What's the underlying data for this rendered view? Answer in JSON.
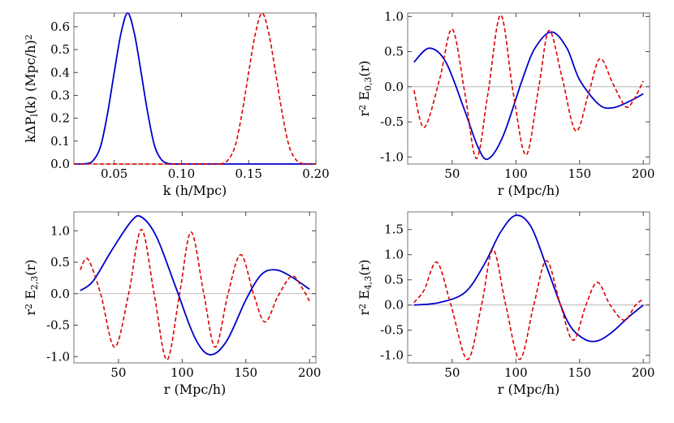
{
  "chart_data": [
    {
      "id": "top-left",
      "type": "line",
      "xlabel": "k (h/Mpc)",
      "ylabel": "kΔP_l(k) (Mpc/h)^2",
      "xlim": [
        0.02,
        0.2
      ],
      "ylim": [
        0.0,
        0.66
      ],
      "xticks": [
        0.05,
        0.1,
        0.15,
        0.2
      ],
      "xtick_labels": [
        "0.05",
        "0.10",
        "0.15",
        "0.20"
      ],
      "yticks": [
        0.0,
        0.1,
        0.2,
        0.3,
        0.4,
        0.5,
        0.6
      ],
      "ytick_labels": [
        "0.0",
        "0.1",
        "0.2",
        "0.3",
        "0.4",
        "0.5",
        "0.6"
      ],
      "zero_line": false,
      "series": [
        {
          "name": "solid",
          "color": "#0000cc",
          "style": "solid",
          "x": [
            0.02,
            0.03,
            0.035,
            0.04,
            0.045,
            0.05,
            0.055,
            0.06,
            0.065,
            0.07,
            0.075,
            0.08,
            0.085,
            0.09,
            0.095,
            0.1,
            0.11,
            0.2
          ],
          "y": [
            0.0,
            0.002,
            0.02,
            0.08,
            0.22,
            0.4,
            0.57,
            0.66,
            0.57,
            0.4,
            0.22,
            0.08,
            0.02,
            0.002,
            0.0,
            0.0,
            0.0,
            0.0
          ]
        },
        {
          "name": "dashed",
          "color": "#dd0000",
          "style": "dashed",
          "x": [
            0.02,
            0.12,
            0.13,
            0.135,
            0.14,
            0.145,
            0.15,
            0.155,
            0.16,
            0.165,
            0.17,
            0.175,
            0.18,
            0.185,
            0.19,
            0.195,
            0.2
          ],
          "y": [
            0.0,
            0.0,
            0.002,
            0.02,
            0.08,
            0.22,
            0.4,
            0.57,
            0.66,
            0.57,
            0.4,
            0.22,
            0.08,
            0.02,
            0.002,
            0.0,
            0.0
          ]
        }
      ]
    },
    {
      "id": "top-right",
      "type": "line",
      "xlabel": "r (Mpc/h)",
      "ylabel": "r^2 E_{0,3}(r)",
      "xlim": [
        15,
        205
      ],
      "ylim": [
        -1.1,
        1.05
      ],
      "xticks": [
        50,
        100,
        150,
        200
      ],
      "xtick_labels": [
        "50",
        "100",
        "150",
        "200"
      ],
      "yticks": [
        -1.0,
        -0.5,
        0.0,
        0.5,
        1.0
      ],
      "ytick_labels": [
        "-1.0",
        "-0.5",
        "0.0",
        "0.5",
        "1.0"
      ],
      "zero_line": true,
      "series": [
        {
          "name": "solid",
          "color": "#0000cc",
          "style": "solid",
          "x": [
            20,
            32,
            45,
            60,
            70,
            78,
            90,
            105,
            115,
            128,
            140,
            150,
            165,
            176,
            190,
            200
          ],
          "y": [
            0.35,
            0.55,
            0.35,
            -0.35,
            -0.85,
            -1.03,
            -0.7,
            0.1,
            0.55,
            0.78,
            0.55,
            0.1,
            -0.25,
            -0.3,
            -0.2,
            -0.1
          ]
        },
        {
          "name": "dashed",
          "color": "#dd0000",
          "style": "dashed",
          "x": [
            20,
            28,
            40,
            50,
            60,
            69,
            78,
            88,
            98,
            108,
            118,
            126,
            136,
            147,
            157,
            166,
            176,
            186,
            192,
            200
          ],
          "y": [
            -0.05,
            -0.58,
            0.1,
            0.82,
            -0.1,
            -1.02,
            -0.1,
            1.02,
            -0.1,
            -0.97,
            0.0,
            0.8,
            0.15,
            -0.63,
            -0.1,
            0.4,
            0.05,
            -0.28,
            -0.2,
            0.08
          ]
        }
      ]
    },
    {
      "id": "bottom-left",
      "type": "line",
      "xlabel": "r (Mpc/h)",
      "ylabel": "r^2 E_{2,3}(r)",
      "xlim": [
        15,
        205
      ],
      "ylim": [
        -1.1,
        1.3
      ],
      "xticks": [
        50,
        100,
        150,
        200
      ],
      "xtick_labels": [
        "50",
        "100",
        "150",
        "200"
      ],
      "yticks": [
        -1.0,
        -0.5,
        0.0,
        0.5,
        1.0
      ],
      "ytick_labels": [
        "-1.0",
        "-0.5",
        "0.0",
        "0.5",
        "1.0"
      ],
      "zero_line": true,
      "series": [
        {
          "name": "solid",
          "color": "#0000cc",
          "style": "solid",
          "x": [
            20,
            30,
            45,
            60,
            68,
            80,
            95,
            110,
            122,
            135,
            150,
            162,
            173,
            185,
            200
          ],
          "y": [
            0.05,
            0.2,
            0.7,
            1.15,
            1.22,
            0.9,
            0.1,
            -0.7,
            -0.97,
            -0.75,
            -0.1,
            0.3,
            0.38,
            0.28,
            0.07
          ]
        },
        {
          "name": "dashed",
          "color": "#dd0000",
          "style": "dashed",
          "x": [
            20,
            26,
            36,
            47,
            58,
            68,
            78,
            88,
            98,
            107,
            117,
            126,
            136,
            146,
            156,
            165,
            175,
            186,
            194,
            200
          ],
          "y": [
            0.38,
            0.55,
            0.0,
            -0.85,
            0.0,
            1.02,
            0.0,
            -1.05,
            0.0,
            0.98,
            0.0,
            -0.85,
            0.0,
            0.62,
            0.0,
            -0.45,
            -0.05,
            0.28,
            0.1,
            -0.12
          ]
        }
      ]
    },
    {
      "id": "bottom-right",
      "type": "line",
      "xlabel": "r (Mpc/h)",
      "ylabel": "r^2 E_{4,3}(r)",
      "xlim": [
        15,
        205
      ],
      "ylim": [
        -1.15,
        1.85
      ],
      "xticks": [
        50,
        100,
        150,
        200
      ],
      "xtick_labels": [
        "50",
        "100",
        "150",
        "200"
      ],
      "yticks": [
        -1.0,
        -0.5,
        0.0,
        0.5,
        1.0,
        1.5
      ],
      "ytick_labels": [
        "-1.0",
        "-0.5",
        "0.0",
        "0.5",
        "1.0",
        "1.5"
      ],
      "zero_line": true,
      "series": [
        {
          "name": "solid",
          "color": "#0000cc",
          "style": "solid",
          "x": [
            20,
            40,
            60,
            75,
            88,
            100,
            112,
            125,
            140,
            152,
            163,
            175,
            188,
            200
          ],
          "y": [
            0.0,
            0.05,
            0.25,
            0.8,
            1.45,
            1.78,
            1.55,
            0.7,
            -0.3,
            -0.65,
            -0.72,
            -0.55,
            -0.25,
            0.0
          ]
        },
        {
          "name": "dashed",
          "color": "#dd0000",
          "style": "dashed",
          "x": [
            20,
            28,
            38,
            49,
            62,
            73,
            82,
            92,
            103,
            114,
            124,
            135,
            145,
            155,
            164,
            174,
            185,
            194,
            200
          ],
          "y": [
            0.05,
            0.3,
            0.85,
            0.0,
            -1.08,
            0.0,
            1.1,
            0.0,
            -1.08,
            0.0,
            0.88,
            0.0,
            -0.7,
            0.0,
            0.45,
            0.0,
            -0.3,
            0.0,
            0.12
          ]
        }
      ]
    }
  ]
}
